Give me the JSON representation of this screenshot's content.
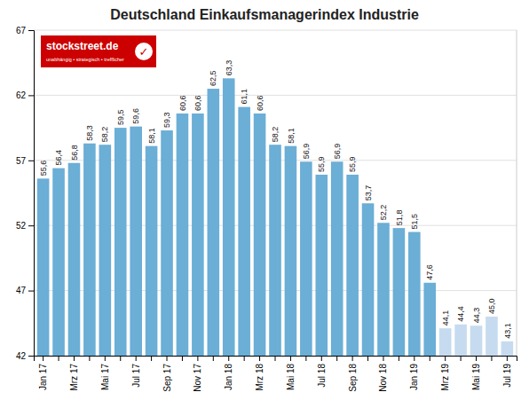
{
  "chart_data": {
    "type": "bar",
    "title": "Deutschland Einkaufsmanagerindex Industrie",
    "categories": [
      "Jan 17",
      null,
      "Mrz 17",
      null,
      "Mai 17",
      null,
      "Jul 17",
      null,
      "Sep 17",
      null,
      "Nov 17",
      null,
      "Jan 18",
      null,
      "Mrz 18",
      null,
      "Mai 18",
      null,
      "Jul 18",
      null,
      "Sep 18",
      null,
      "Nov 18",
      null,
      "Jan 19",
      null,
      "Mrz 19",
      null,
      "Mai 19",
      null,
      "Jul 19"
    ],
    "values": [
      55.6,
      56.4,
      56.8,
      58.3,
      58.2,
      59.5,
      59.6,
      58.1,
      59.3,
      60.6,
      60.6,
      62.5,
      63.3,
      61.1,
      60.6,
      58.2,
      58.1,
      56.9,
      55.9,
      56.9,
      55.9,
      53.7,
      52.2,
      51.8,
      51.5,
      47.6,
      44.1,
      44.4,
      44.3,
      45.0,
      43.1
    ],
    "value_labels": [
      "55,6",
      "56,4",
      "56,8",
      "58,3",
      "58,2",
      "59,5",
      "59,6",
      "58,1",
      "59,3",
      "60,6",
      "60,6",
      "62,5",
      "63,3",
      "61,1",
      "60,6",
      "58,2",
      "58,1",
      "56,9",
      "55,9",
      "56,9",
      "55,9",
      "53,7",
      "52,2",
      "51,8",
      "51,5",
      "47,6",
      "44,1",
      "44,4",
      "44,3",
      "45,0",
      "43,1"
    ],
    "colors": [
      "#6baed6",
      "#6baed6",
      "#6baed6",
      "#6baed6",
      "#6baed6",
      "#6baed6",
      "#6baed6",
      "#6baed6",
      "#6baed6",
      "#6baed6",
      "#6baed6",
      "#6baed6",
      "#6baed6",
      "#6baed6",
      "#6baed6",
      "#6baed6",
      "#6baed6",
      "#6baed6",
      "#6baed6",
      "#6baed6",
      "#6baed6",
      "#6baed6",
      "#6baed6",
      "#6baed6",
      "#6baed6",
      "#6baed6",
      "#c6dbef",
      "#c6dbef",
      "#c6dbef",
      "#c6dbef",
      "#c6dbef"
    ],
    "ylim": [
      42,
      67
    ],
    "yticks": [
      42,
      47,
      52,
      57,
      62,
      67
    ],
    "grid": true,
    "data_labels": true,
    "annotations": [
      "stockstreet.de",
      "unabhängig • strategisch • trefflicher",
      "✓"
    ]
  }
}
